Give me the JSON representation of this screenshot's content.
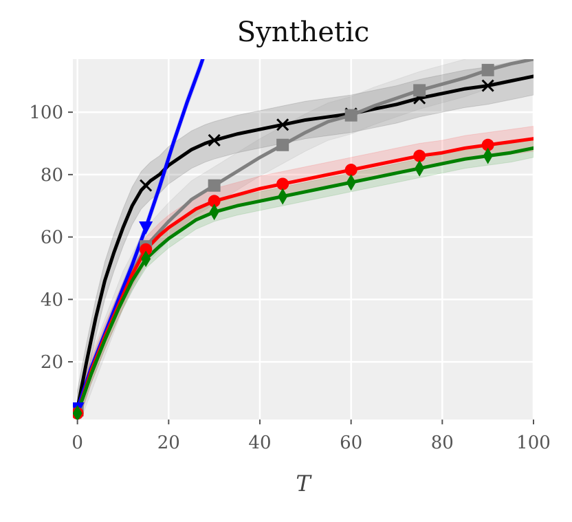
{
  "chart_data": {
    "type": "line",
    "title": "Synthetic",
    "xlabel": "T",
    "ylabel": "",
    "xlim": [
      -1,
      100
    ],
    "ylim": [
      1.5,
      117
    ],
    "grid": true,
    "xticks": [
      0,
      20,
      40,
      60,
      80,
      100
    ],
    "yticks": [
      20,
      40,
      60,
      80,
      100
    ],
    "series": [
      {
        "color": "#000000",
        "marker": "x",
        "markers_at": [
          0,
          15,
          30,
          45,
          60,
          75,
          90
        ],
        "band": 6,
        "x": [
          0,
          2,
          4,
          6,
          8,
          10,
          12,
          14,
          16,
          18,
          20,
          22,
          25,
          28,
          30,
          35,
          40,
          45,
          50,
          55,
          60,
          65,
          70,
          75,
          80,
          85,
          90,
          95,
          100
        ],
        "y": [
          5,
          20,
          34,
          46,
          55,
          63,
          70,
          75,
          78,
          80,
          83,
          85,
          88,
          90,
          91,
          93,
          94.5,
          96,
          97.5,
          98.5,
          99.5,
          101,
          102.5,
          104.5,
          106,
          107.5,
          108.5,
          110,
          111.5
        ]
      },
      {
        "color": "#808080",
        "marker": "square",
        "markers_at": [
          0,
          15,
          30,
          45,
          60,
          75,
          90
        ],
        "band": 6,
        "x": [
          0,
          5,
          10,
          15,
          20,
          25,
          30,
          35,
          40,
          45,
          50,
          55,
          60,
          65,
          70,
          75,
          80,
          85,
          90,
          95,
          100
        ],
        "y": [
          4.5,
          24,
          43,
          57,
          65,
          72,
          76.5,
          81,
          85.5,
          89.5,
          93.5,
          97,
          99,
          102,
          104.5,
          107,
          109,
          111,
          113.5,
          115.5,
          117
        ]
      },
      {
        "color": "#0000ff",
        "marker": "triangle-down",
        "markers_at": [
          0,
          15
        ],
        "band": 2,
        "x": [
          0,
          3,
          6,
          9,
          12,
          15,
          18,
          21,
          24,
          27,
          30
        ],
        "y": [
          5,
          18,
          29,
          40,
          51,
          63,
          76,
          90,
          103,
          115,
          128
        ]
      },
      {
        "color": "#ff0000",
        "marker": "circle",
        "markers_at": [
          0,
          15,
          30,
          45,
          60,
          75,
          90
        ],
        "band": 4,
        "x": [
          0,
          3,
          6,
          9,
          12,
          15,
          18,
          20,
          23,
          26,
          30,
          35,
          40,
          45,
          50,
          55,
          60,
          65,
          70,
          75,
          80,
          85,
          90,
          95,
          100
        ],
        "y": [
          3.5,
          17,
          28,
          38,
          48,
          56,
          60.5,
          63,
          66,
          69,
          71.5,
          73.5,
          75.5,
          77,
          78.5,
          80,
          81.5,
          83,
          84.5,
          86,
          87,
          88.5,
          89.5,
          90.5,
          91.5
        ]
      },
      {
        "color": "#008000",
        "marker": "diamond",
        "markers_at": [
          0,
          15,
          30,
          45,
          60,
          75,
          90
        ],
        "band": 3,
        "x": [
          0,
          3,
          6,
          9,
          12,
          15,
          18,
          20,
          23,
          26,
          30,
          35,
          40,
          45,
          50,
          55,
          60,
          65,
          70,
          75,
          80,
          85,
          90,
          95,
          100
        ],
        "y": [
          3.5,
          16,
          27,
          37,
          46,
          53,
          57,
          59.5,
          62.5,
          65.5,
          68,
          70,
          71.5,
          73,
          74.5,
          76,
          77.5,
          79,
          80.5,
          82,
          83.5,
          85,
          86,
          87,
          88.5
        ]
      }
    ]
  }
}
